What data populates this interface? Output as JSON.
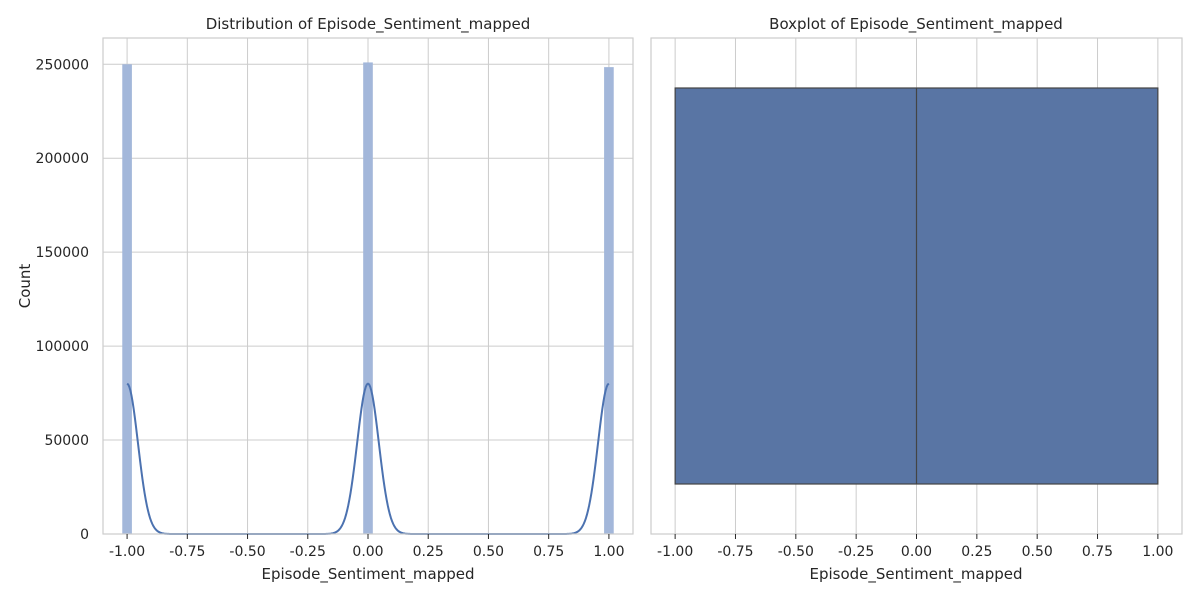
{
  "chart_data": [
    {
      "type": "bar",
      "title": "Distribution of Episode_Sentiment_mapped",
      "xlabel": "Episode_Sentiment_mapped",
      "ylabel": "Count",
      "xlim": [
        -1.1,
        1.1
      ],
      "ylim": [
        0,
        264000
      ],
      "xticks": [
        "-1.00",
        "-0.75",
        "-0.50",
        "-0.25",
        "0.00",
        "0.25",
        "0.50",
        "0.75",
        "1.00"
      ],
      "xtick_values": [
        -1.0,
        -0.75,
        -0.5,
        -0.25,
        0.0,
        0.25,
        0.5,
        0.75,
        1.0
      ],
      "yticks": [
        "0",
        "50000",
        "100000",
        "150000",
        "200000",
        "250000"
      ],
      "ytick_values": [
        0,
        50000,
        100000,
        150000,
        200000,
        250000
      ],
      "grid": true,
      "bar_color": "#a3b7da",
      "kde_color": "#4c72b0",
      "bars": [
        {
          "x": -1.0,
          "count": 250000
        },
        {
          "x": 0.0,
          "count": 251000
        },
        {
          "x": 1.0,
          "count": 248500
        }
      ],
      "kde_peak": 80000
    },
    {
      "type": "boxplot",
      "title": "Boxplot of Episode_Sentiment_mapped",
      "xlabel": "Episode_Sentiment_mapped",
      "xlim": [
        -1.1,
        1.1
      ],
      "xticks": [
        "-1.00",
        "-0.75",
        "-0.50",
        "-0.25",
        "0.00",
        "0.25",
        "0.50",
        "0.75",
        "1.00"
      ],
      "xtick_values": [
        -1.0,
        -0.75,
        -0.5,
        -0.25,
        0.0,
        0.25,
        0.5,
        0.75,
        1.0
      ],
      "grid": true,
      "box_color": "#5975a4",
      "stats": {
        "min": -1.0,
        "q1": -1.0,
        "median": 0.0,
        "q3": 1.0,
        "max": 1.0
      }
    }
  ]
}
